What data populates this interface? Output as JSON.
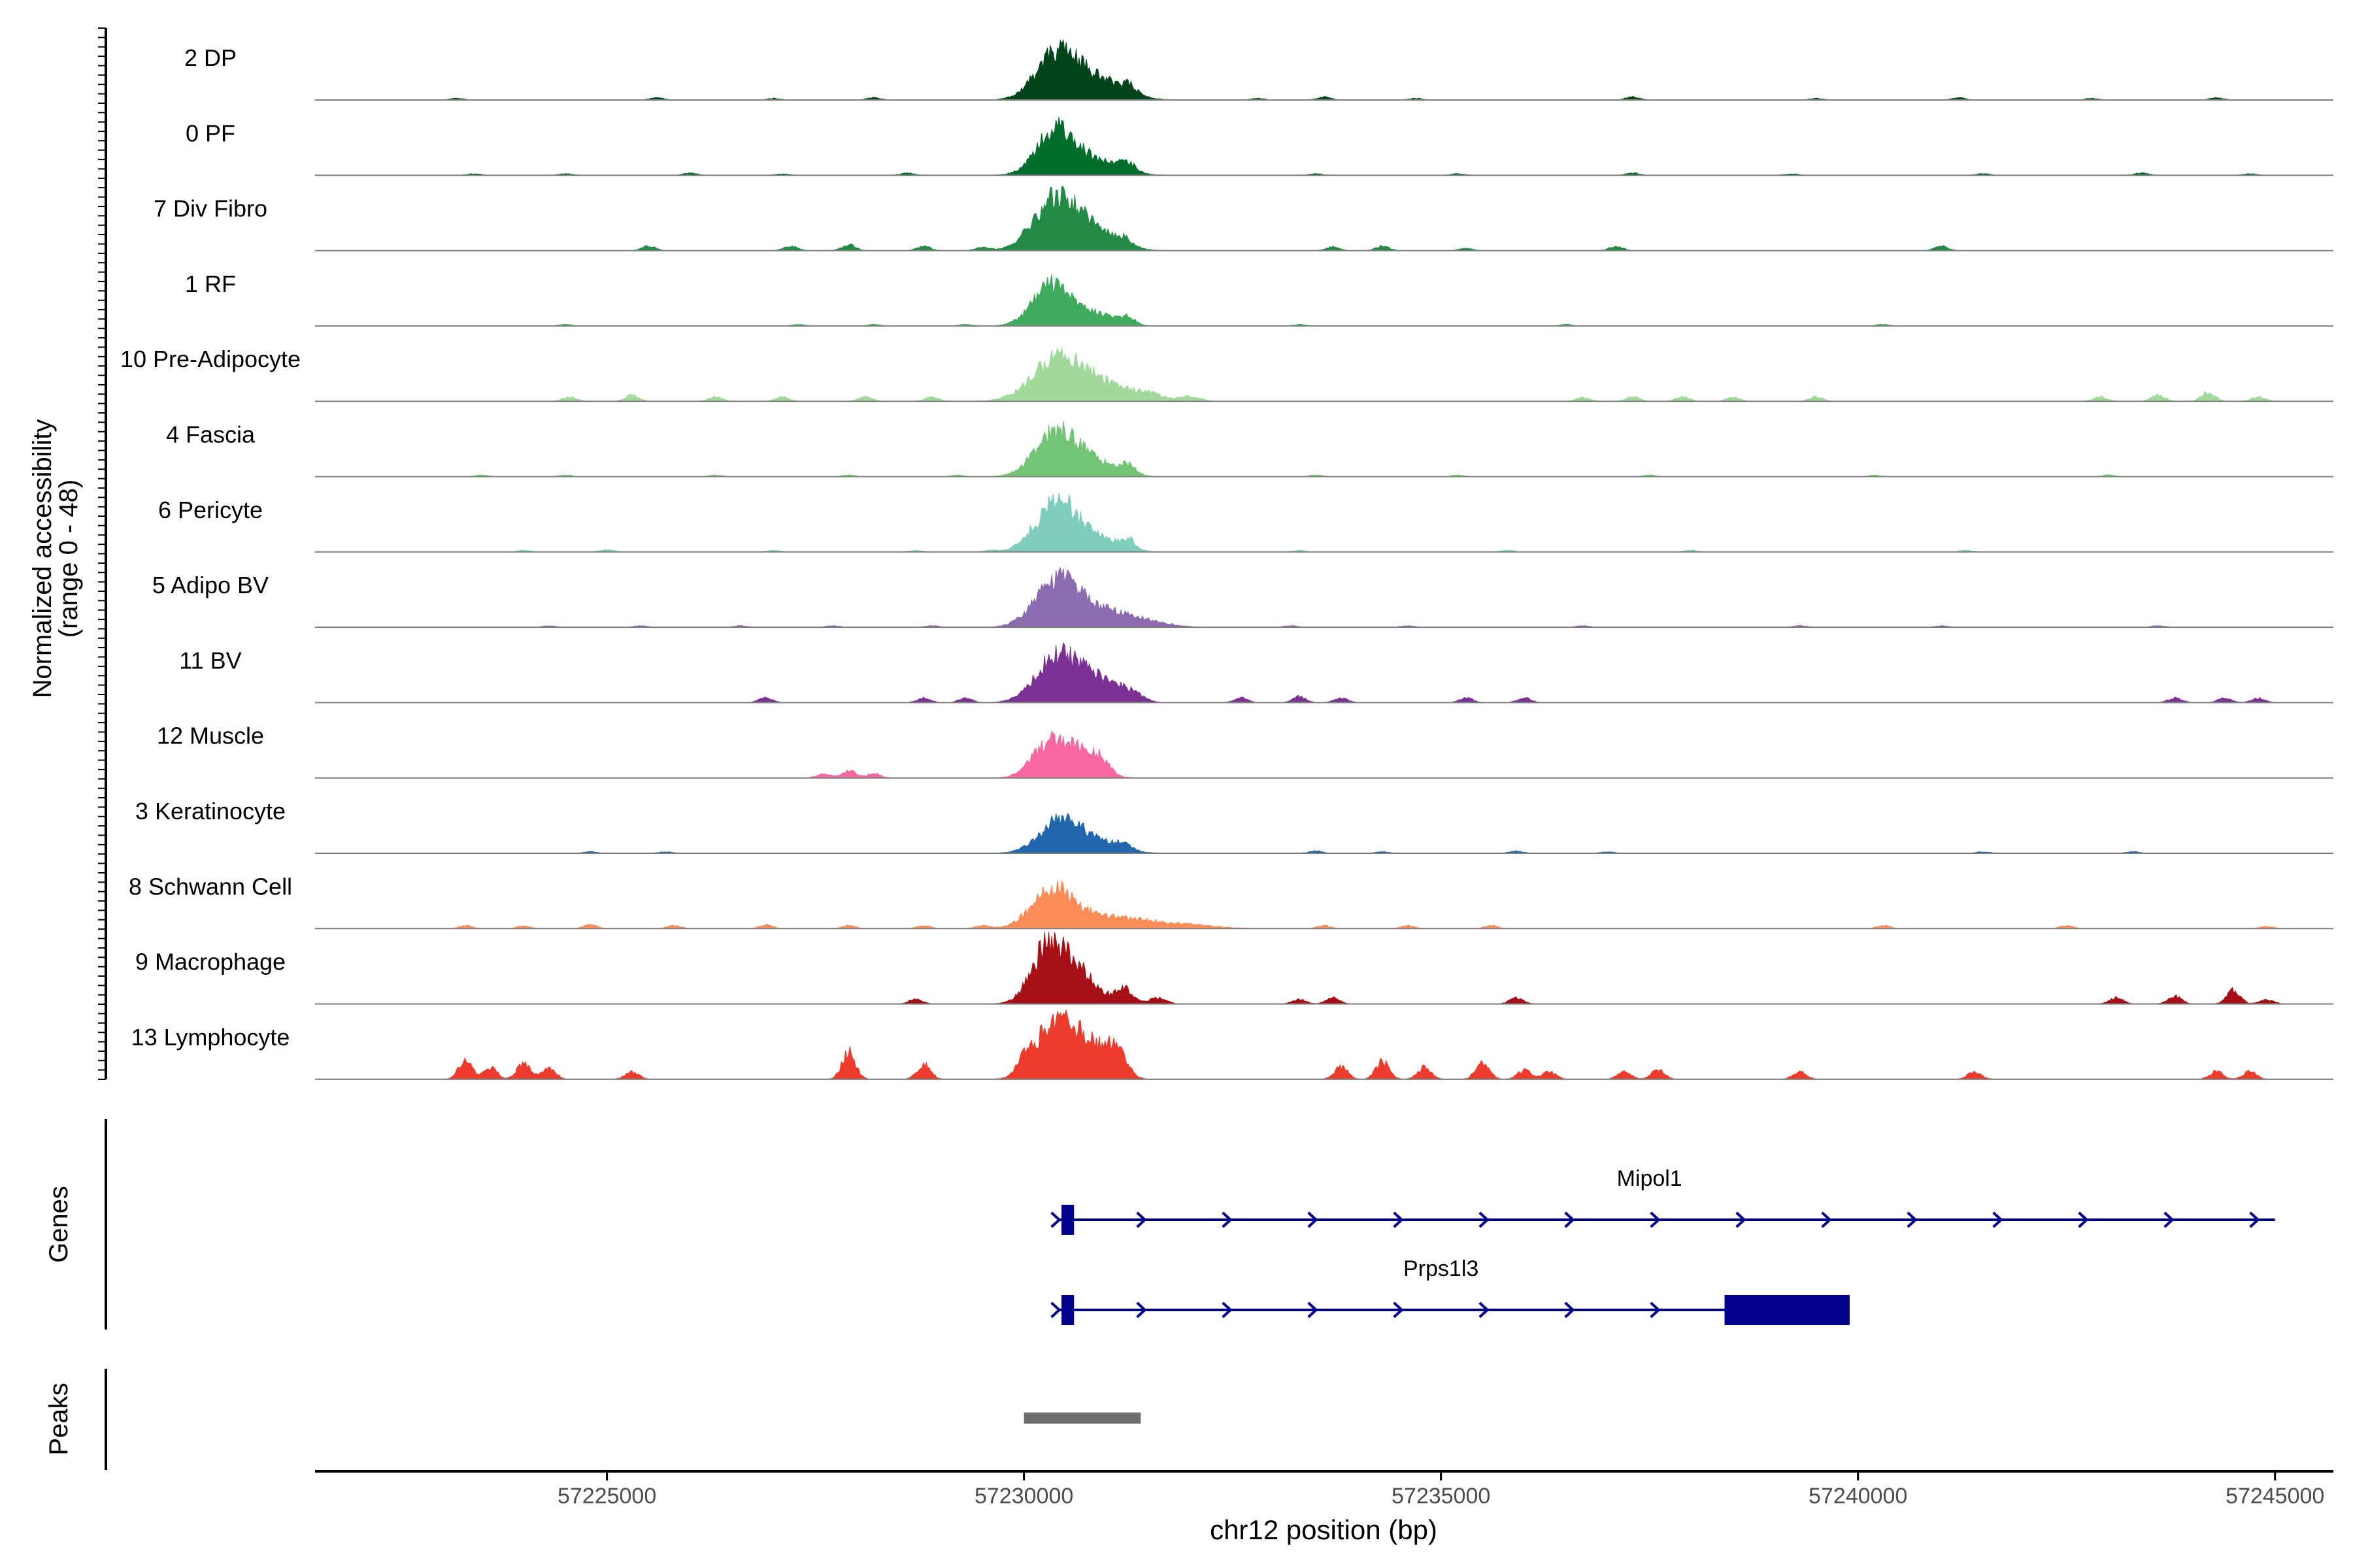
{
  "chart_data": {
    "type": "area",
    "title": "",
    "region": {
      "chrom": "chr12",
      "start": 57221500,
      "end": 57245700
    },
    "xlabel": "chr12 position (bp)",
    "ylabel_line1": "Normalized accessibility",
    "ylabel_line2": "(range 0 - 48)",
    "ylim": [
      0,
      48
    ],
    "x_ticks": [
      57225000,
      57230000,
      57235000,
      57240000,
      57245000
    ],
    "x_tick_labels": [
      "57225000",
      "57230000",
      "57235000",
      "57240000",
      "57245000"
    ],
    "tracks": [
      {
        "name": "2 DP",
        "color": "#00441b",
        "peaks": [
          [
            57230400,
            30,
            250
          ],
          [
            57230900,
            12,
            300
          ],
          [
            57231250,
            5,
            100
          ]
        ],
        "noise": [
          [
            57223200,
            1
          ],
          [
            57225600,
            1.5
          ],
          [
            57227000,
            1
          ],
          [
            57228200,
            1.5
          ],
          [
            57232800,
            1
          ],
          [
            57233600,
            2
          ],
          [
            57234700,
            1
          ],
          [
            57237300,
            2
          ],
          [
            57239500,
            1
          ],
          [
            57241200,
            1.5
          ],
          [
            57242800,
            1
          ],
          [
            57244300,
            1.5
          ]
        ]
      },
      {
        "name": "0 PF",
        "color": "#006d2c",
        "peaks": [
          [
            57230400,
            32,
            230
          ],
          [
            57230950,
            8,
            250
          ],
          [
            57231250,
            5,
            90
          ]
        ],
        "noise": [
          [
            57223400,
            1
          ],
          [
            57224500,
            1
          ],
          [
            57226000,
            1.5
          ],
          [
            57227100,
            1
          ],
          [
            57228600,
            1.5
          ],
          [
            57233500,
            1
          ],
          [
            57235200,
            1
          ],
          [
            57237300,
            1.5
          ],
          [
            57239200,
            1
          ],
          [
            57241500,
            1
          ],
          [
            57243400,
            1.5
          ],
          [
            57244700,
            1
          ]
        ]
      },
      {
        "name": "7 Div Fibro",
        "color": "#238b45",
        "peaks": [
          [
            57230400,
            35,
            270
          ],
          [
            57230900,
            10,
            260
          ],
          [
            57231200,
            4,
            100
          ]
        ],
        "noise": [
          [
            57225500,
            3
          ],
          [
            57227200,
            3
          ],
          [
            57227900,
            4
          ],
          [
            57228800,
            3
          ],
          [
            57229500,
            2
          ],
          [
            57233700,
            2.5
          ],
          [
            57234300,
            3
          ],
          [
            57235300,
            1.5
          ],
          [
            57237100,
            3
          ],
          [
            57241000,
            3
          ]
        ]
      },
      {
        "name": "1 RF",
        "color": "#41ab5d",
        "peaks": [
          [
            57230350,
            28,
            230
          ],
          [
            57230900,
            7,
            220
          ],
          [
            57231250,
            5,
            80
          ]
        ],
        "noise": [
          [
            57224500,
            1
          ],
          [
            57227300,
            1
          ],
          [
            57228200,
            1
          ],
          [
            57229300,
            1
          ],
          [
            57233300,
            1
          ],
          [
            57236500,
            1
          ],
          [
            57240300,
            1
          ]
        ]
      },
      {
        "name": "10 Pre-Adipocyte",
        "color": "#a1d99b",
        "peaks": [
          [
            57230400,
            28,
            300
          ],
          [
            57230950,
            10,
            300
          ],
          [
            57231500,
            4,
            200
          ],
          [
            57232000,
            3,
            120
          ]
        ],
        "noise": [
          [
            57224550,
            3
          ],
          [
            57225300,
            4
          ],
          [
            57226300,
            3
          ],
          [
            57227100,
            3
          ],
          [
            57228100,
            3
          ],
          [
            57228900,
            3
          ],
          [
            57236700,
            2.5
          ],
          [
            57237300,
            3
          ],
          [
            57237900,
            3
          ],
          [
            57238500,
            2.5
          ],
          [
            57239500,
            3
          ],
          [
            57242900,
            3
          ],
          [
            57243600,
            4
          ],
          [
            57244200,
            6
          ],
          [
            57244800,
            3
          ]
        ]
      },
      {
        "name": "4 Fascia",
        "color": "#74c476",
        "peaks": [
          [
            57230400,
            30,
            250
          ],
          [
            57230900,
            8,
            250
          ],
          [
            57231250,
            6,
            90
          ]
        ],
        "noise": [
          [
            57223500,
            1
          ],
          [
            57224500,
            1
          ],
          [
            57226300,
            1
          ],
          [
            57227900,
            1
          ],
          [
            57229200,
            1
          ],
          [
            57233500,
            1
          ],
          [
            57235200,
            1
          ],
          [
            57237500,
            1
          ],
          [
            57240200,
            1
          ],
          [
            57243000,
            1
          ]
        ]
      },
      {
        "name": "6 Pericyte",
        "color": "#7fcdbb",
        "peaks": [
          [
            57230400,
            34,
            250
          ],
          [
            57230950,
            8,
            230
          ],
          [
            57231250,
            6,
            80
          ]
        ],
        "noise": [
          [
            57224000,
            1
          ],
          [
            57225000,
            1.5
          ],
          [
            57227000,
            1
          ],
          [
            57228700,
            1
          ],
          [
            57229600,
            1
          ],
          [
            57233300,
            1
          ],
          [
            57235800,
            1
          ],
          [
            57238000,
            1
          ],
          [
            57241300,
            1
          ]
        ]
      },
      {
        "name": "5 Adipo BV",
        "color": "#8c6bb1",
        "peaks": [
          [
            57230400,
            30,
            260
          ],
          [
            57230950,
            10,
            320
          ],
          [
            57231500,
            3,
            250
          ]
        ],
        "noise": [
          [
            57224300,
            1
          ],
          [
            57225400,
            1
          ],
          [
            57226600,
            1
          ],
          [
            57227700,
            1
          ],
          [
            57228900,
            1
          ],
          [
            57233200,
            1
          ],
          [
            57234600,
            1
          ],
          [
            57236700,
            1
          ],
          [
            57239300,
            1
          ],
          [
            57241000,
            1
          ],
          [
            57243600,
            1
          ]
        ]
      },
      {
        "name": "11 BV",
        "color": "#7b3294",
        "peaks": [
          [
            57230400,
            30,
            250
          ],
          [
            57230900,
            14,
            250
          ],
          [
            57231300,
            5,
            120
          ]
        ],
        "noise": [
          [
            57226900,
            3
          ],
          [
            57228800,
            3
          ],
          [
            57229300,
            3
          ],
          [
            57232600,
            3
          ],
          [
            57233300,
            4
          ],
          [
            57233800,
            3
          ],
          [
            57235300,
            3
          ],
          [
            57236000,
            3
          ],
          [
            57243800,
            3
          ],
          [
            57244400,
            3
          ],
          [
            57244800,
            3
          ]
        ]
      },
      {
        "name": "12 Muscle",
        "color": "#f768a1",
        "peaks": [
          [
            57230300,
            22,
            200
          ],
          [
            57230700,
            18,
            200
          ],
          [
            57230950,
            6,
            80
          ]
        ],
        "noise": [
          [
            57227600,
            3
          ],
          [
            57227900,
            5
          ],
          [
            57228200,
            3
          ]
        ]
      },
      {
        "name": "3 Keratinocyte",
        "color": "#2166ac",
        "peaks": [
          [
            57230450,
            22,
            250
          ],
          [
            57230950,
            6,
            250
          ],
          [
            57231200,
            4,
            80
          ]
        ],
        "noise": [
          [
            57224800,
            1
          ],
          [
            57225700,
            1
          ],
          [
            57233500,
            1.5
          ],
          [
            57234300,
            1
          ],
          [
            57235900,
            1.5
          ],
          [
            57237000,
            1
          ],
          [
            57241500,
            1
          ],
          [
            57243300,
            1
          ]
        ]
      },
      {
        "name": "8 Schwann Cell",
        "color": "#fc8d59",
        "peaks": [
          [
            57230350,
            25,
            250
          ],
          [
            57231000,
            7,
            400
          ],
          [
            57231800,
            3,
            400
          ]
        ],
        "noise": [
          [
            57223300,
            2
          ],
          [
            57224000,
            2
          ],
          [
            57224800,
            2.5
          ],
          [
            57225800,
            2
          ],
          [
            57226900,
            2.5
          ],
          [
            57227900,
            2
          ],
          [
            57228800,
            2
          ],
          [
            57229500,
            2
          ],
          [
            57233600,
            2
          ],
          [
            57234600,
            2
          ],
          [
            57235600,
            2
          ],
          [
            57240300,
            2
          ],
          [
            57242500,
            2
          ],
          [
            57244900,
            1.5
          ]
        ]
      },
      {
        "name": "9 Macrophage",
        "color": "#a50f15",
        "peaks": [
          [
            57230300,
            40,
            200
          ],
          [
            57230700,
            18,
            200
          ],
          [
            57231200,
            10,
            100
          ],
          [
            57231600,
            4,
            100
          ]
        ],
        "noise": [
          [
            57228700,
            3
          ],
          [
            57233300,
            3
          ],
          [
            57233700,
            4
          ],
          [
            57235900,
            4
          ],
          [
            57243100,
            4
          ],
          [
            57243800,
            5
          ],
          [
            57244500,
            9
          ],
          [
            57244900,
            3
          ]
        ]
      },
      {
        "name": "13 Lymphocyte",
        "color": "#ef3b2c",
        "peaks": [
          [
            57230350,
            35,
            220
          ],
          [
            57230750,
            22,
            220
          ],
          [
            57231100,
            18,
            120
          ],
          [
            57230000,
            8,
            80
          ]
        ],
        "noise": [
          [
            57223300,
            12
          ],
          [
            57223600,
            8
          ],
          [
            57224000,
            10
          ],
          [
            57224300,
            8
          ],
          [
            57225300,
            5
          ],
          [
            57227900,
            18
          ],
          [
            57228800,
            10
          ],
          [
            57233800,
            8
          ],
          [
            57234300,
            12
          ],
          [
            57234800,
            8
          ],
          [
            57235500,
            12
          ],
          [
            57236000,
            6
          ],
          [
            57236300,
            5
          ],
          [
            57237200,
            5
          ],
          [
            57237600,
            6
          ],
          [
            57239300,
            5
          ],
          [
            57241400,
            5
          ],
          [
            57244300,
            5
          ],
          [
            57244700,
            5
          ]
        ]
      }
    ],
    "genes": [
      {
        "name": "Mipol1",
        "strand": "+",
        "start": 57230400,
        "end": 57245000,
        "exons": [
          [
            57230450,
            57230600
          ]
        ]
      },
      {
        "name": "Prps1l3",
        "strand": "+",
        "start": 57230400,
        "end": 57239800,
        "exons": [
          [
            57230450,
            57230600
          ],
          [
            57238400,
            57239900
          ]
        ]
      }
    ],
    "peaks": [
      [
        57230000,
        57231400
      ]
    ],
    "gene_track_label": "Genes",
    "peak_track_label": "Peaks"
  }
}
